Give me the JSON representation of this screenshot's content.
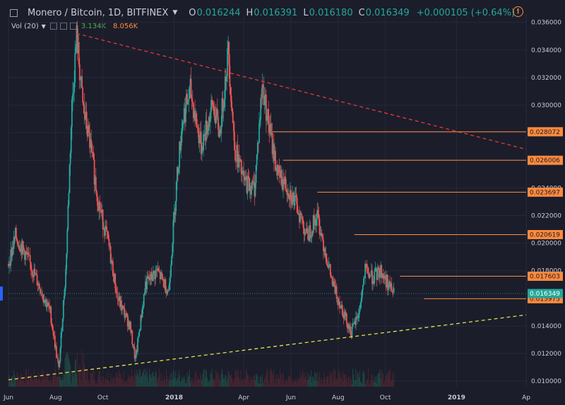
{
  "header": {
    "symbol": "Monero / Bitcoin, 1D, BITFINEX",
    "o_label": "O",
    "o_value": "0.016244",
    "h_label": "H",
    "h_value": "0.016391",
    "l_label": "L",
    "l_value": "0.016180",
    "c_label": "C",
    "c_value": "0.016349",
    "change": "+0.000105 (+0.64%)"
  },
  "volume": {
    "label": "Vol (20)",
    "value1": "3.134K",
    "value2": "8.056K"
  },
  "colors": {
    "background": "#1b1d2b",
    "up": "#26a69a",
    "down": "#ef5350",
    "level_line": "#ff8a3d",
    "trend_down": "#e53935",
    "trend_up": "#e6e14a",
    "axis_text": "#c9cbd6"
  },
  "chart_data": {
    "type": "candlestick",
    "y_axis": {
      "min": 0.0096,
      "max": 0.0366,
      "ticks": [
        "0.036000",
        "0.034000",
        "0.032000",
        "0.030000",
        "0.028000",
        "0.026000",
        "0.024000",
        "0.022000",
        "0.020000",
        "0.018000",
        "0.016000",
        "0.014000",
        "0.012000",
        "0.010000"
      ]
    },
    "x_axis": {
      "start": "2017-06-01",
      "end": "2019-04-01",
      "ticks": [
        {
          "date": "2017-06-01",
          "label": "Jun",
          "bold": false
        },
        {
          "date": "2017-08-01",
          "label": "Aug",
          "bold": false
        },
        {
          "date": "2017-10-01",
          "label": "Oct",
          "bold": false
        },
        {
          "date": "2018-01-01",
          "label": "2018",
          "bold": true
        },
        {
          "date": "2018-04-01",
          "label": "Apr",
          "bold": false
        },
        {
          "date": "2018-06-01",
          "label": "Jun",
          "bold": false
        },
        {
          "date": "2018-08-01",
          "label": "Aug",
          "bold": false
        },
        {
          "date": "2018-10-01",
          "label": "Oct",
          "bold": false
        },
        {
          "date": "2019-01-01",
          "label": "2019",
          "bold": true
        },
        {
          "date": "2019-04-01",
          "label": "Ap",
          "bold": false
        }
      ]
    },
    "last_price": "0.016349",
    "price_path": [
      [
        "2017-06-01",
        0.0185
      ],
      [
        "2017-06-10",
        0.0205
      ],
      [
        "2017-06-25",
        0.019
      ],
      [
        "2017-07-10",
        0.017
      ],
      [
        "2017-07-25",
        0.015
      ],
      [
        "2017-08-05",
        0.0108
      ],
      [
        "2017-08-14",
        0.018
      ],
      [
        "2017-08-22",
        0.03
      ],
      [
        "2017-08-28",
        0.035
      ],
      [
        "2017-09-05",
        0.03
      ],
      [
        "2017-09-15",
        0.027
      ],
      [
        "2017-09-25",
        0.023
      ],
      [
        "2017-10-08",
        0.02
      ],
      [
        "2017-10-20",
        0.016
      ],
      [
        "2017-11-05",
        0.014
      ],
      [
        "2017-11-12",
        0.0115
      ],
      [
        "2017-11-25",
        0.017
      ],
      [
        "2017-12-10",
        0.018
      ],
      [
        "2017-12-25",
        0.0165
      ],
      [
        "2018-01-05",
        0.025
      ],
      [
        "2018-01-12",
        0.029
      ],
      [
        "2018-01-22",
        0.031
      ],
      [
        "2018-02-05",
        0.027
      ],
      [
        "2018-02-20",
        0.03
      ],
      [
        "2018-03-01",
        0.028
      ],
      [
        "2018-03-12",
        0.034
      ],
      [
        "2018-03-20",
        0.027
      ],
      [
        "2018-04-01",
        0.0245
      ],
      [
        "2018-04-15",
        0.024
      ],
      [
        "2018-04-25",
        0.0315
      ],
      [
        "2018-05-05",
        0.028
      ],
      [
        "2018-05-15",
        0.025
      ],
      [
        "2018-05-28",
        0.024
      ],
      [
        "2018-06-10",
        0.0225
      ],
      [
        "2018-06-22",
        0.0205
      ],
      [
        "2018-07-05",
        0.022
      ],
      [
        "2018-07-15",
        0.0195
      ],
      [
        "2018-07-25",
        0.017
      ],
      [
        "2018-08-08",
        0.015
      ],
      [
        "2018-08-18",
        0.0135
      ],
      [
        "2018-08-28",
        0.015
      ],
      [
        "2018-09-05",
        0.018
      ],
      [
        "2018-09-15",
        0.0175
      ],
      [
        "2018-09-25",
        0.018
      ],
      [
        "2018-10-05",
        0.017
      ],
      [
        "2018-10-12",
        0.0163
      ]
    ],
    "trend_lines": [
      {
        "style": "dashed",
        "color": "#e53935",
        "from": [
          "2017-08-28",
          0.0352
        ],
        "to": [
          "2019-04-01",
          0.0268
        ]
      },
      {
        "style": "dashed",
        "color": "#e6e14a",
        "from": [
          "2017-06-01",
          0.0101
        ],
        "to": [
          "2019-04-01",
          0.0148
        ]
      }
    ],
    "levels": [
      {
        "value": 0.028072,
        "label": "0.028072",
        "start": "2018-05-08"
      },
      {
        "value": 0.026006,
        "label": "0.026006",
        "start": "2018-05-22"
      },
      {
        "value": 0.023697,
        "label": "0.023697",
        "start": "2018-07-05"
      },
      {
        "value": 0.020619,
        "label": "0.020619",
        "start": "2018-08-22"
      },
      {
        "value": 0.017603,
        "label": "0.017603",
        "start": "2018-10-20"
      },
      {
        "value": 0.015975,
        "label": "0.015975",
        "start": "2018-11-20"
      }
    ]
  }
}
